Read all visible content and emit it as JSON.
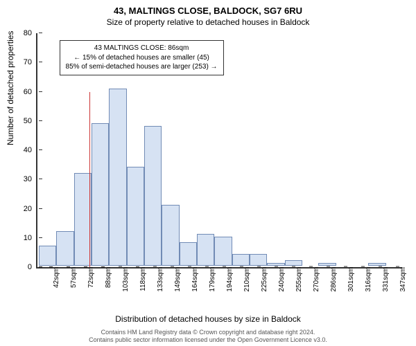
{
  "title_main": "43, MALTINGS CLOSE, BALDOCK, SG7 6RU",
  "title_sub": "Size of property relative to detached houses in Baldock",
  "ylabel": "Number of detached properties",
  "xlabel": "Distribution of detached houses by size in Baldock",
  "chart": {
    "type": "histogram",
    "bar_fill": "#d6e2f3",
    "bar_stroke": "#718bb5",
    "axis_color": "#333333",
    "background_color": "#ffffff",
    "ylim": [
      0,
      80
    ],
    "ytick_step": 10,
    "yticks": [
      0,
      10,
      20,
      30,
      40,
      50,
      60,
      70,
      80
    ],
    "categories": [
      "42sqm",
      "57sqm",
      "72sqm",
      "88sqm",
      "103sqm",
      "118sqm",
      "133sqm",
      "149sqm",
      "164sqm",
      "179sqm",
      "194sqm",
      "210sqm",
      "225sqm",
      "240sqm",
      "255sqm",
      "270sqm",
      "286sqm",
      "301sqm",
      "316sqm",
      "331sqm",
      "347sqm"
    ],
    "values": [
      7,
      12,
      32,
      49,
      61,
      34,
      48,
      21,
      8,
      11,
      10,
      4,
      4,
      1,
      2,
      0,
      1,
      0,
      0,
      1,
      0
    ],
    "label_fontsize": 12,
    "tick_fontsize": 10
  },
  "marker": {
    "color": "#cc3333",
    "bin_index_after": 3,
    "value_sqm": 86
  },
  "annotation": {
    "line1": "43 MALTINGS CLOSE: 86sqm",
    "line2": "← 15% of detached houses are smaller (45)",
    "line3": "85% of semi-detached houses are larger (253) →",
    "border_color": "#333333",
    "fontsize": 10
  },
  "footer": {
    "line1": "Contains HM Land Registry data © Crown copyright and database right 2024.",
    "line2": "Contains public sector information licensed under the Open Government Licence v3.0."
  }
}
